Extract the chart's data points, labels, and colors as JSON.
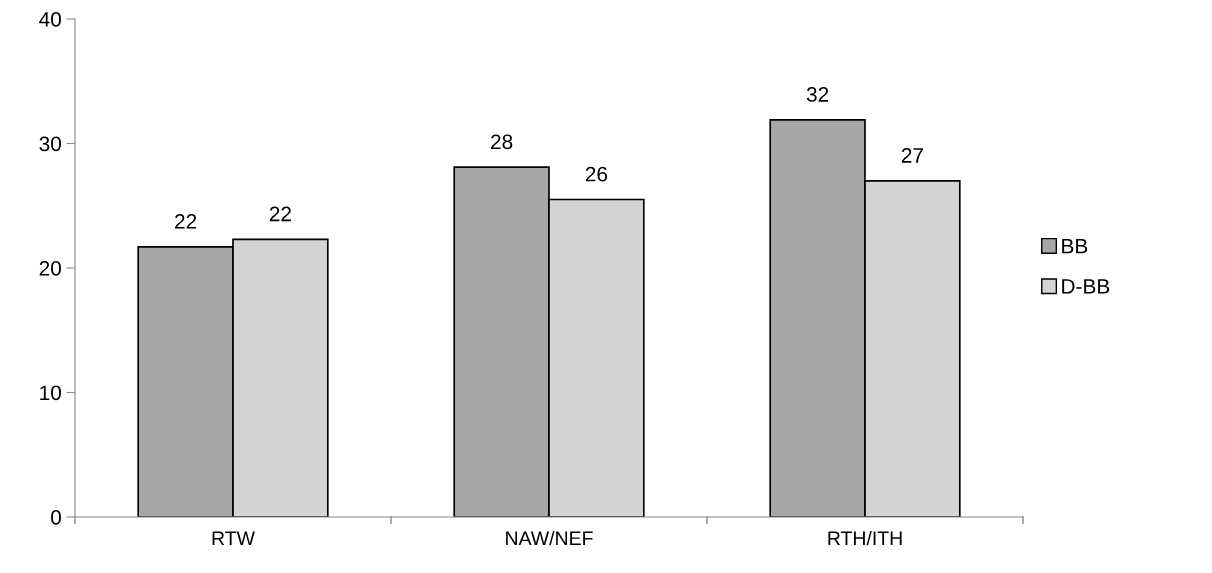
{
  "chart_data": {
    "type": "bar",
    "categories": [
      "RTW",
      "NAW/NEF",
      "RTH/ITH"
    ],
    "series": [
      {
        "name": "BB",
        "color": "#a6a6a6",
        "values": [
          21.7,
          28.1,
          31.9
        ],
        "value_labels": [
          "22",
          "28",
          "32"
        ]
      },
      {
        "name": "D-BB",
        "color": "#d4d4d4",
        "values": [
          22.3,
          25.5,
          27.0
        ],
        "value_labels": [
          "22",
          "26",
          "27"
        ]
      }
    ],
    "ylim": [
      0,
      40
    ],
    "yticks": [
      0,
      10,
      20,
      30,
      40
    ],
    "grid": false,
    "legend": "right"
  }
}
